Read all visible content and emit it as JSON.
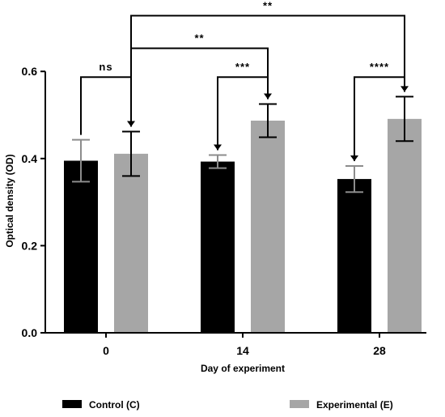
{
  "chart_data": {
    "type": "bar",
    "categories": [
      "0",
      "14",
      "28"
    ],
    "series": [
      {
        "name": "Control (C)",
        "color": "#000000",
        "errcolor": "#8c8c8c",
        "values": [
          0.395,
          0.393,
          0.353
        ],
        "errors": [
          0.048,
          0.015,
          0.03
        ]
      },
      {
        "name": "Experimental (E)",
        "color": "#a6a6a6",
        "errcolor": "#000000",
        "values": [
          0.411,
          0.487,
          0.491
        ],
        "errors": [
          0.051,
          0.038,
          0.051
        ]
      }
    ],
    "xlabel": "Day of experiment",
    "ylabel": "Optical density (OD)",
    "ylim": [
      0,
      0.6
    ],
    "yticks": [
      0.0,
      0.2,
      0.4,
      0.6
    ],
    "ytick_labels": [
      "0.0",
      "0.2",
      "0.4",
      "0.6"
    ],
    "significance": [
      {
        "from": [
          0,
          0
        ],
        "to": [
          0,
          1
        ],
        "label": "ns",
        "level": 0.587
      },
      {
        "from": [
          1,
          1
        ],
        "to": [
          1,
          0
        ],
        "label": "***",
        "level": 0.587
      },
      {
        "from": [
          2,
          1
        ],
        "to": [
          2,
          0
        ],
        "label": "****",
        "level": 0.587
      },
      {
        "from": [
          0,
          1
        ],
        "to": [
          1,
          1
        ],
        "label": "**",
        "level": 0.653
      },
      {
        "from": [
          0,
          1
        ],
        "to": [
          2,
          1
        ],
        "label": "**",
        "level": 0.728
      }
    ],
    "legend_position": "bottom",
    "grid": false
  }
}
